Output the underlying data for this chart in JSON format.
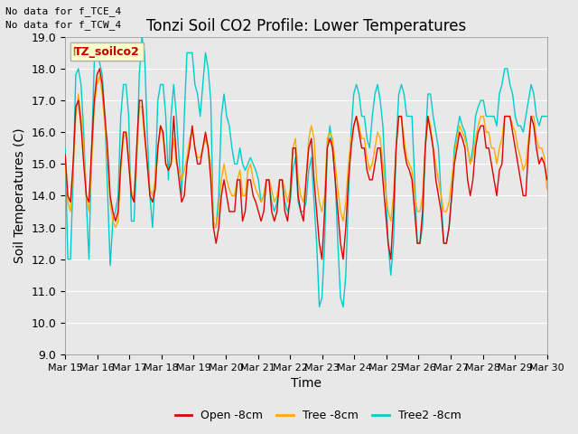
{
  "title": "Tonzi Soil CO2 Profile: Lower Temperatures",
  "xlabel": "Time",
  "ylabel": "Soil Temperatures (C)",
  "ylim": [
    9.0,
    19.0
  ],
  "yticks": [
    9.0,
    10.0,
    11.0,
    12.0,
    13.0,
    14.0,
    15.0,
    16.0,
    17.0,
    18.0,
    19.0
  ],
  "xtick_labels": [
    "Mar 15",
    "Mar 16",
    "Mar 17",
    "Mar 18",
    "Mar 19",
    "Mar 20",
    "Mar 21",
    "Mar 22",
    "Mar 23",
    "Mar 24",
    "Mar 25",
    "Mar 26",
    "Mar 27",
    "Mar 28",
    "Mar 29",
    "Mar 30"
  ],
  "note1": "No data for f_TCE_4",
  "note2": "No data for f_TCW_4",
  "legend_label": "TZ_soilco2",
  "series_labels": [
    "Open -8cm",
    "Tree -8cm",
    "Tree2 -8cm"
  ],
  "series_colors": [
    "#dd0000",
    "#ffaa00",
    "#00cccc"
  ],
  "bg_color": "#e8e8e8",
  "title_fontsize": 12,
  "axis_label_fontsize": 10,
  "tick_fontsize": 9,
  "open_8cm": [
    15.3,
    14.0,
    13.8,
    15.0,
    16.8,
    17.0,
    16.2,
    15.0,
    14.0,
    13.8,
    15.5,
    17.0,
    17.8,
    18.0,
    17.5,
    16.5,
    15.5,
    14.0,
    13.5,
    13.2,
    13.5,
    15.0,
    16.0,
    16.0,
    15.0,
    14.0,
    13.8,
    15.5,
    17.0,
    17.0,
    16.0,
    15.0,
    14.0,
    13.8,
    14.2,
    15.5,
    16.2,
    16.0,
    15.0,
    14.8,
    15.0,
    16.5,
    15.2,
    14.5,
    13.8,
    14.0,
    15.0,
    15.5,
    16.2,
    15.5,
    15.0,
    15.0,
    15.5,
    16.0,
    15.5,
    14.5,
    13.0,
    12.5,
    13.0,
    14.0,
    14.5,
    14.0,
    13.5,
    13.5,
    13.5,
    14.5,
    14.5,
    13.2,
    13.5,
    14.5,
    14.5,
    14.0,
    13.8,
    13.5,
    13.2,
    13.5,
    14.5,
    14.5,
    13.5,
    13.2,
    13.5,
    14.5,
    14.5,
    13.5,
    13.2,
    14.0,
    15.5,
    15.5,
    14.0,
    13.5,
    13.2,
    14.5,
    15.5,
    15.8,
    14.5,
    13.5,
    12.5,
    12.0,
    13.5,
    15.5,
    15.8,
    15.5,
    14.5,
    13.5,
    12.5,
    12.0,
    13.0,
    14.5,
    15.5,
    16.2,
    16.5,
    16.0,
    15.5,
    15.5,
    14.8,
    14.5,
    14.5,
    15.0,
    15.5,
    15.5,
    14.5,
    13.5,
    12.5,
    12.0,
    13.5,
    15.5,
    16.5,
    16.5,
    15.5,
    15.0,
    14.8,
    14.5,
    13.5,
    12.5,
    12.5,
    13.5,
    15.5,
    16.5,
    16.0,
    15.5,
    14.5,
    14.0,
    13.5,
    12.5,
    12.5,
    13.0,
    14.0,
    15.0,
    15.5,
    16.0,
    15.8,
    15.5,
    14.5,
    14.0,
    14.5,
    15.5,
    16.0,
    16.2,
    16.2,
    15.5,
    15.5,
    15.0,
    14.5,
    14.0,
    14.8,
    15.0,
    16.5,
    16.5,
    16.5,
    16.0,
    15.5,
    15.0,
    14.5,
    14.0,
    14.0,
    15.5,
    16.5,
    16.2,
    15.5,
    15.0,
    15.2,
    15.0,
    14.5
  ],
  "tree_8cm": [
    15.0,
    13.8,
    13.5,
    14.8,
    16.5,
    17.2,
    16.5,
    15.5,
    14.0,
    13.5,
    15.0,
    16.8,
    17.5,
    17.8,
    17.2,
    16.2,
    15.2,
    13.8,
    13.2,
    13.0,
    13.2,
    14.8,
    15.8,
    16.0,
    15.2,
    14.2,
    13.8,
    15.2,
    16.8,
    16.8,
    15.8,
    15.0,
    14.2,
    14.0,
    14.5,
    15.5,
    16.2,
    15.8,
    15.0,
    14.8,
    15.0,
    15.8,
    15.0,
    14.8,
    14.5,
    14.8,
    15.2,
    15.8,
    16.0,
    15.5,
    15.2,
    15.2,
    15.5,
    15.8,
    15.5,
    15.0,
    13.2,
    13.0,
    13.5,
    14.5,
    15.0,
    14.5,
    14.2,
    14.0,
    14.0,
    14.5,
    14.8,
    14.0,
    14.0,
    14.8,
    15.0,
    14.5,
    14.2,
    14.0,
    13.8,
    14.0,
    14.5,
    14.5,
    14.2,
    13.8,
    14.0,
    14.5,
    14.5,
    14.2,
    13.8,
    14.2,
    15.5,
    15.8,
    14.5,
    14.0,
    13.8,
    14.5,
    15.8,
    16.2,
    15.8,
    14.5,
    13.8,
    13.5,
    14.0,
    15.8,
    16.0,
    15.8,
    15.0,
    14.2,
    13.5,
    13.2,
    13.8,
    15.0,
    15.8,
    16.2,
    16.5,
    16.2,
    15.8,
    15.8,
    15.2,
    14.8,
    15.0,
    15.5,
    16.0,
    15.8,
    15.0,
    14.2,
    13.5,
    13.2,
    14.0,
    15.5,
    16.5,
    16.5,
    15.8,
    15.2,
    15.0,
    14.8,
    14.0,
    13.5,
    13.5,
    14.0,
    15.5,
    16.5,
    16.2,
    15.5,
    15.0,
    14.5,
    14.0,
    13.5,
    13.5,
    13.8,
    14.5,
    15.2,
    15.8,
    16.2,
    16.0,
    15.8,
    15.5,
    15.0,
    15.2,
    15.8,
    16.2,
    16.5,
    16.5,
    16.0,
    16.0,
    15.5,
    15.5,
    15.0,
    15.5,
    15.8,
    16.5,
    16.5,
    16.5,
    16.2,
    16.0,
    15.5,
    15.2,
    14.8,
    15.0,
    15.8,
    16.5,
    16.5,
    15.8,
    15.5,
    15.5,
    15.2,
    14.2
  ],
  "tree2_8cm": [
    15.5,
    12.0,
    12.0,
    14.5,
    17.8,
    18.0,
    17.5,
    16.0,
    13.8,
    12.0,
    15.5,
    18.2,
    18.4,
    18.2,
    17.8,
    16.5,
    14.2,
    11.8,
    13.2,
    13.5,
    14.0,
    16.5,
    17.5,
    17.5,
    16.5,
    13.2,
    13.2,
    15.0,
    17.8,
    19.0,
    18.5,
    16.0,
    14.0,
    13.0,
    14.5,
    17.0,
    17.5,
    17.5,
    16.5,
    14.5,
    16.5,
    17.5,
    16.5,
    15.2,
    14.0,
    16.5,
    18.5,
    18.5,
    18.5,
    17.5,
    17.2,
    16.5,
    17.5,
    18.5,
    18.0,
    17.0,
    13.0,
    13.0,
    14.0,
    16.5,
    17.2,
    16.5,
    16.2,
    15.5,
    15.0,
    15.0,
    15.5,
    15.0,
    14.8,
    15.0,
    15.2,
    15.0,
    14.8,
    14.5,
    13.8,
    14.0,
    14.5,
    14.5,
    13.8,
    13.5,
    13.8,
    14.5,
    14.5,
    13.8,
    13.5,
    13.8,
    14.8,
    15.2,
    13.8,
    13.5,
    13.5,
    13.8,
    14.8,
    15.2,
    13.8,
    12.5,
    10.5,
    10.8,
    12.5,
    15.5,
    16.2,
    15.5,
    14.5,
    12.5,
    10.8,
    10.5,
    11.5,
    14.0,
    16.0,
    17.2,
    17.5,
    17.2,
    16.5,
    16.5,
    15.8,
    15.5,
    16.5,
    17.2,
    17.5,
    17.0,
    16.2,
    14.5,
    12.5,
    11.5,
    12.5,
    15.5,
    17.2,
    17.5,
    17.2,
    16.5,
    16.5,
    16.5,
    14.5,
    12.5,
    12.5,
    13.0,
    15.5,
    17.2,
    17.2,
    16.5,
    16.0,
    15.5,
    14.0,
    12.5,
    12.5,
    13.0,
    14.0,
    15.5,
    16.0,
    16.5,
    16.2,
    16.0,
    15.5,
    15.0,
    15.5,
    16.5,
    16.8,
    17.0,
    17.0,
    16.5,
    16.5,
    16.5,
    16.5,
    16.2,
    17.2,
    17.5,
    18.0,
    18.0,
    17.5,
    17.2,
    16.5,
    16.2,
    16.2,
    16.0,
    16.5,
    17.0,
    17.5,
    17.2,
    16.5,
    16.2,
    16.5,
    16.5,
    16.5
  ]
}
